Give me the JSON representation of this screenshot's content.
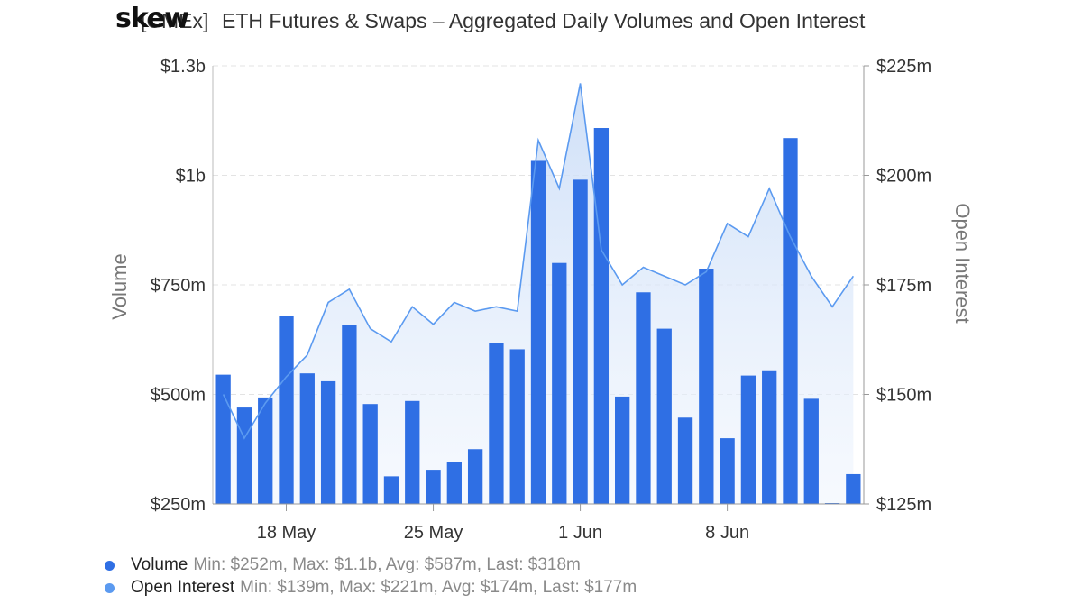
{
  "header": {
    "logo": "skew",
    "title_prefix": "[CMEx]",
    "title": "ETH Futures & Swaps – Aggregated Daily Volumes and Open Interest"
  },
  "legend": [
    {
      "name": "Volume",
      "stats": "Min: $252m, Max: $1.1b, Avg: $587m, Last: $318m",
      "color": "#2f6fe4"
    },
    {
      "name": "Open Interest",
      "stats": "Min: $139m, Max: $221m, Avg: $174m, Last: $177m",
      "color": "#5b9af0"
    }
  ],
  "chart_data": {
    "type": "bar",
    "title": "ETH Futures & Swaps – Aggregated Daily Volumes and Open Interest",
    "x_ticks": [
      "18 May",
      "25 May",
      "1 Jun",
      "8 Jun"
    ],
    "x_tick_index": [
      3,
      10,
      17,
      24
    ],
    "left_axis": {
      "label": "Volume",
      "ticks": [
        "$250m",
        "$500m",
        "$750m",
        "$1b",
        "$1.3b"
      ],
      "range": [
        250,
        1250
      ],
      "unit": "millions USD"
    },
    "right_axis": {
      "label": "Open Interest",
      "ticks": [
        "$125m",
        "$150m",
        "$175m",
        "$200m",
        "$225m"
      ],
      "range": [
        125,
        225
      ],
      "unit": "millions USD"
    },
    "grid": true,
    "legend_position": "bottom-left",
    "series": [
      {
        "name": "Volume",
        "kind": "bar",
        "axis": "left",
        "color": "#2f6fe4",
        "values": [
          545,
          470,
          493,
          680,
          548,
          530,
          658,
          478,
          313,
          485,
          328,
          345,
          375,
          618,
          603,
          1033,
          800,
          990,
          1108,
          495,
          733,
          650,
          447,
          787,
          400,
          543,
          555,
          1085,
          490,
          252,
          318
        ]
      },
      {
        "name": "Open Interest",
        "kind": "area",
        "axis": "right",
        "color": "#5b9af0",
        "values": [
          150,
          140,
          148,
          154,
          159,
          171,
          174,
          165,
          162,
          170,
          166,
          171,
          169,
          170,
          169,
          208,
          197,
          221,
          183,
          175,
          179,
          177,
          175,
          178,
          189,
          186,
          197,
          186,
          177,
          170,
          177
        ]
      }
    ]
  }
}
